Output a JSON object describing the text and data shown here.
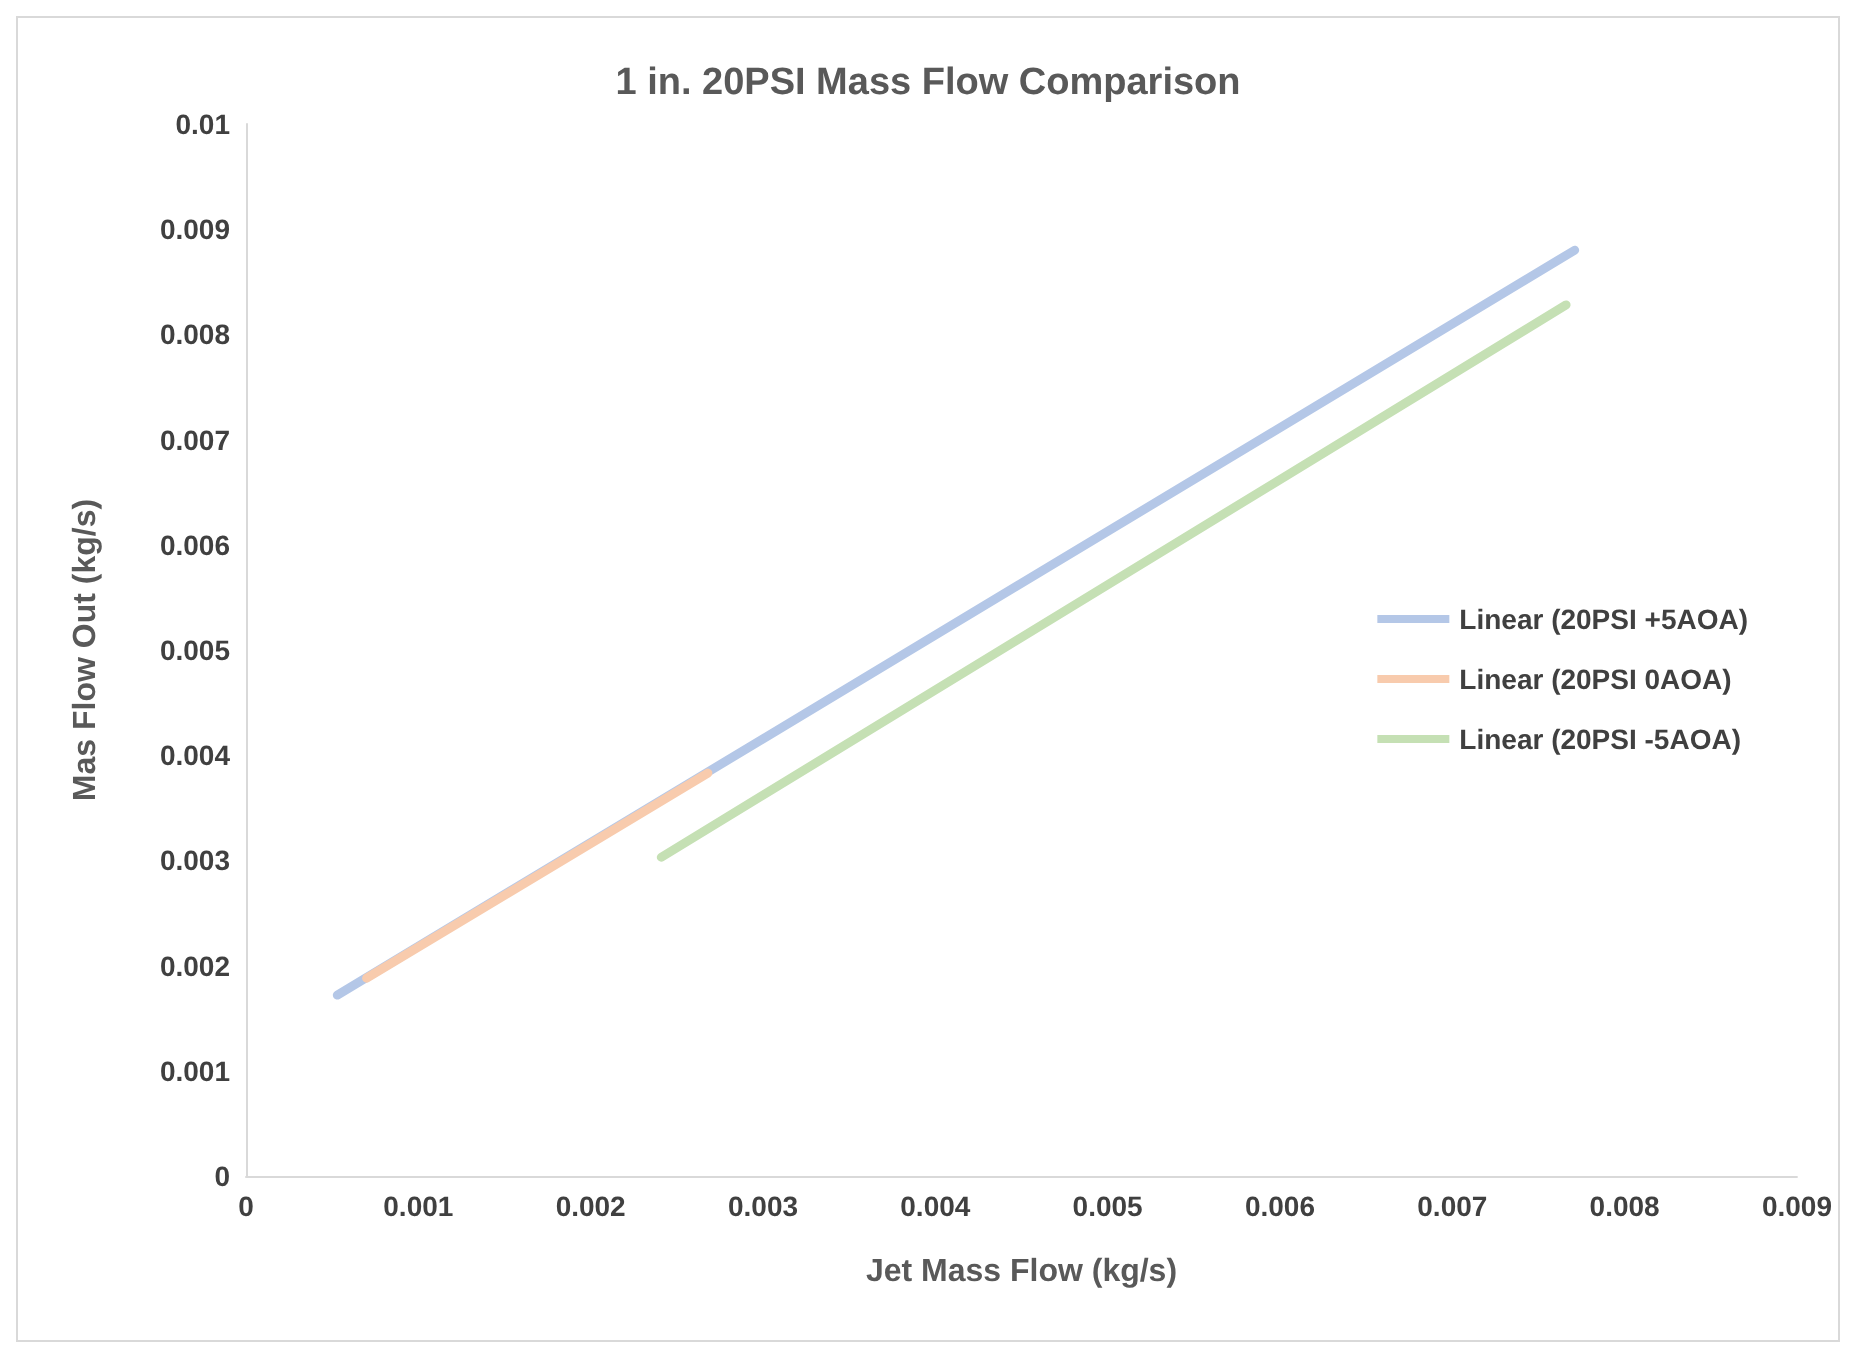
{
  "chart_data": {
    "type": "line",
    "title": "1 in. 20PSI Mass Flow Comparison",
    "xlabel": "Jet Mass Flow (kg/s)",
    "ylabel": "Mas Flow Out (kg/s)",
    "series": [
      {
        "name": "Linear (20PSI +5AOA)",
        "color": "#b4c7e7",
        "x": [
          0.00053,
          0.00771
        ],
        "values": [
          0.00172,
          0.0088
        ]
      },
      {
        "name": "Linear (20PSI 0AOA)",
        "color": "#f8cbad",
        "x": [
          0.0007,
          0.00268
        ],
        "values": [
          0.00188,
          0.00383
        ]
      },
      {
        "name": "Linear (20PSI -5AOA)",
        "color": "#c5e0b4",
        "x": [
          0.00241,
          0.00766
        ],
        "values": [
          0.00303,
          0.00828
        ]
      }
    ],
    "xlim": [
      0,
      0.009
    ],
    "xticks": [
      0,
      0.001,
      0.002,
      0.003,
      0.004,
      0.005,
      0.006,
      0.007,
      0.008,
      0.009
    ],
    "ylim": [
      0,
      0.01
    ],
    "yticks": [
      0,
      0.001,
      0.002,
      0.003,
      0.004,
      0.005,
      0.006,
      0.007,
      0.008,
      0.009,
      0.01
    ],
    "grid": false,
    "legend": "right",
    "marker": "none",
    "line_style": "solid"
  }
}
